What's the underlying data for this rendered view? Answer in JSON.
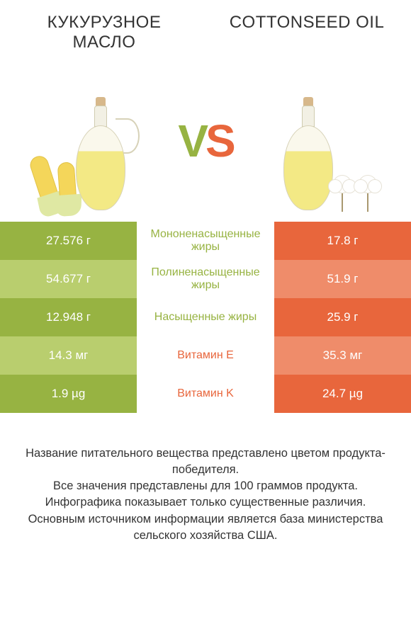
{
  "titles": {
    "left": "КУКУРУЗНОЕ МАСЛО",
    "right": "COTTONSEED OIL"
  },
  "vs": {
    "v": "V",
    "s": "S"
  },
  "colors": {
    "green_dark": "#97b342",
    "green_light": "#b9ce6e",
    "orange_dark": "#e8663c",
    "orange_light": "#ef8c6a",
    "mid_green_text": "#97b342",
    "mid_orange_text": "#e8663c",
    "row_bg": "#ffffff"
  },
  "table": {
    "left_band_colors_alt": [
      "#97b342",
      "#b9ce6e"
    ],
    "right_band_colors_alt": [
      "#e8663c",
      "#ef8c6a"
    ],
    "rows": [
      {
        "left": "27.576 г",
        "mid": "Мононенасыщенные жиры",
        "right": "17.8 г",
        "mid_color": "#97b342"
      },
      {
        "left": "54.677 г",
        "mid": "Полиненасыщенные жиры",
        "right": "51.9 г",
        "mid_color": "#97b342"
      },
      {
        "left": "12.948 г",
        "mid": "Насыщенные жиры",
        "right": "25.9 г",
        "mid_color": "#97b342"
      },
      {
        "left": "14.3 мг",
        "mid": "Витамин E",
        "right": "35.3 мг",
        "mid_color": "#e8663c"
      },
      {
        "left": "1.9 µg",
        "mid": "Витамин K",
        "right": "24.7 µg",
        "mid_color": "#e8663c"
      }
    ]
  },
  "footer": {
    "line1": "Название питательного вещества представлено цветом продукта-победителя.",
    "line2": "Все значения представлены для 100 граммов продукта.",
    "line3": "Инфографика показывает только существенные различия.",
    "line4": "Основным источником информации является база министерства сельского хозяйства США."
  }
}
